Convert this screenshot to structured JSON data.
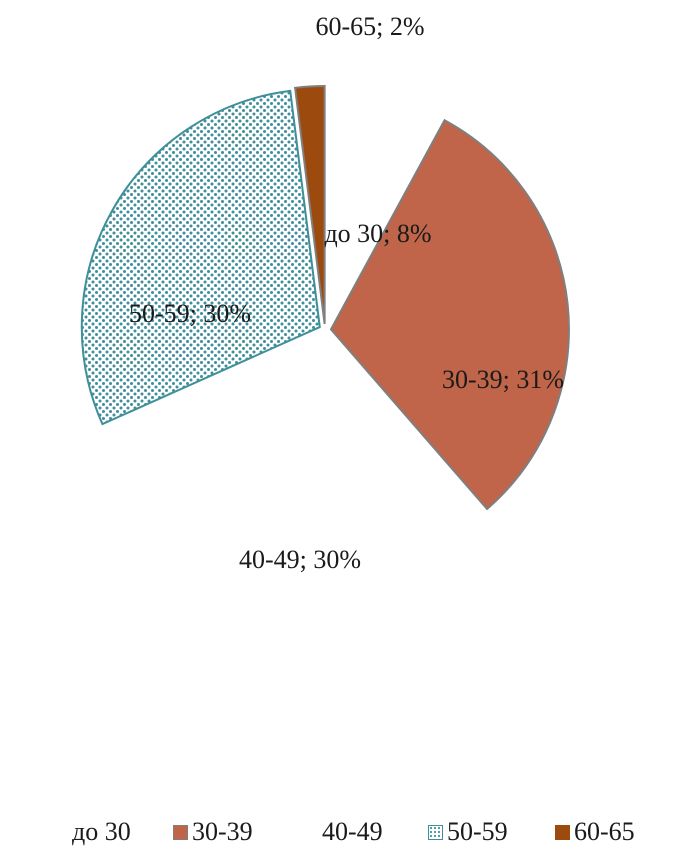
{
  "chart_data": {
    "type": "pie",
    "exploded": true,
    "categories": [
      "до 30",
      "30-39",
      "40-49",
      "50-59",
      "60-65"
    ],
    "values": [
      8,
      31,
      30,
      30,
      2
    ],
    "data_labels": [
      "до 30; 8%",
      "30-39; 31%",
      "40-49; 30%",
      "50-59; 30%",
      "60-65; 2%"
    ],
    "colors": [
      "#ffffff",
      "#c0654a",
      "#ffffff",
      "#3e8f9a",
      "#9c4a0e"
    ],
    "fills": [
      "none",
      "solid",
      "none",
      "dotted-pattern",
      "solid"
    ],
    "legend_position": "bottom",
    "title": "",
    "xlabel": "",
    "ylabel": ""
  },
  "legend": {
    "items": [
      {
        "label": "до 30"
      },
      {
        "label": "30-39"
      },
      {
        "label": "40-49"
      },
      {
        "label": "50-59"
      },
      {
        "label": "60-65"
      }
    ]
  }
}
